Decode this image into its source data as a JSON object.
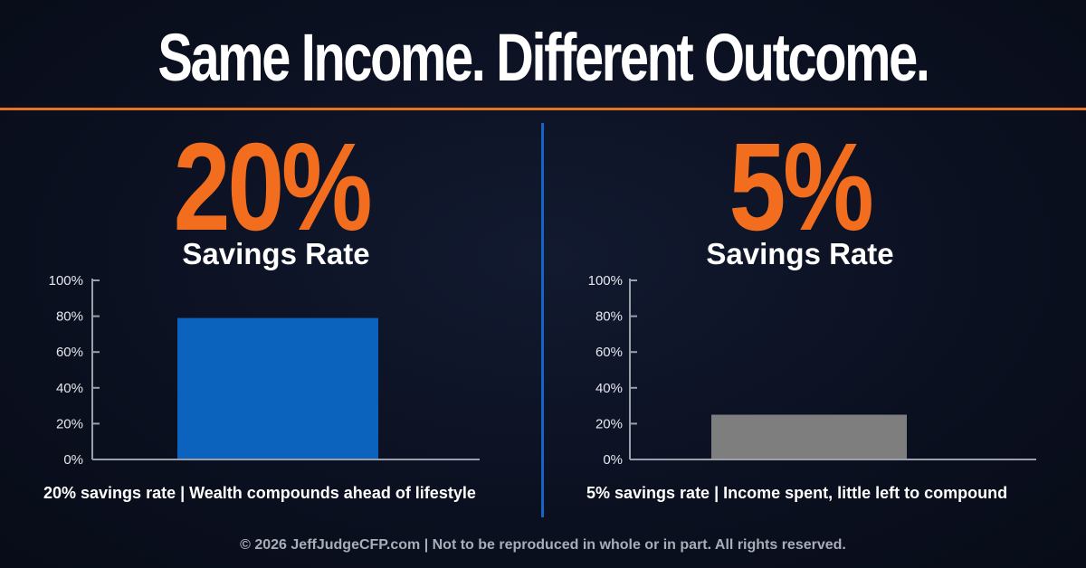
{
  "headline": "Same Income. Different Outcome.",
  "colors": {
    "background": "#0b1020",
    "accent_orange": "#f26d1d",
    "divider_blue": "#1763c6",
    "bar_blue": "#0b63be",
    "bar_gray": "#7e7e7e",
    "axis": "#9aa0aa"
  },
  "panels": [
    {
      "big_value": "20%",
      "subtitle": "Savings Rate",
      "caption": "20% savings rate | Wealth compounds ahead of lifestyle"
    },
    {
      "big_value": "5%",
      "subtitle": "Savings Rate",
      "caption": "5% savings rate | Income spent, little left to compound"
    }
  ],
  "chart_data": [
    {
      "type": "bar",
      "categories": [
        ""
      ],
      "values": [
        79
      ],
      "bar_color": "#0b63be",
      "ylim": [
        0,
        100
      ],
      "yticks": [
        "0%",
        "20%",
        "40%",
        "60%",
        "80%",
        "100%"
      ],
      "grid": false
    },
    {
      "type": "bar",
      "categories": [
        ""
      ],
      "values": [
        25
      ],
      "bar_color": "#7e7e7e",
      "ylim": [
        0,
        100
      ],
      "yticks": [
        "0%",
        "20%",
        "40%",
        "60%",
        "80%",
        "100%"
      ],
      "grid": false
    }
  ],
  "footer": "© 2026  JeffJudgeCFP.com  |  Not to be reproduced in whole or in part. All rights reserved."
}
